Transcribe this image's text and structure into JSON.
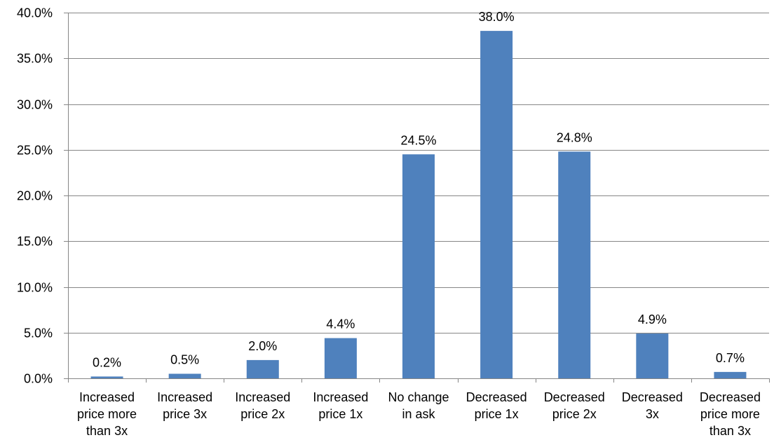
{
  "chart_data": {
    "type": "bar",
    "title": "",
    "xlabel": "",
    "ylabel": "",
    "categories": [
      [
        "Increased",
        "price more",
        "than 3x"
      ],
      [
        "Increased",
        "price 3x"
      ],
      [
        "Increased",
        "price 2x"
      ],
      [
        "Increased",
        "price 1x"
      ],
      [
        "No change",
        "in ask"
      ],
      [
        "Decreased",
        "price 1x"
      ],
      [
        "Decreased",
        "price 2x"
      ],
      [
        "Decreased",
        "3x"
      ],
      [
        "Decreased",
        "price more",
        "than 3x"
      ]
    ],
    "values": [
      0.2,
      0.5,
      2.0,
      4.4,
      24.5,
      38.0,
      24.8,
      4.9,
      0.7
    ],
    "data_labels": [
      "0.2%",
      "0.5%",
      "2.0%",
      "4.4%",
      "24.5%",
      "38.0%",
      "24.8%",
      "4.9%",
      "0.7%"
    ],
    "ylim": [
      0,
      40
    ],
    "yticks": [
      0,
      5,
      10,
      15,
      20,
      25,
      30,
      35,
      40
    ],
    "ytick_labels": [
      "0.0%",
      "5.0%",
      "10.0%",
      "15.0%",
      "20.0%",
      "25.0%",
      "30.0%",
      "35.0%",
      "40.0%"
    ],
    "grid": true,
    "legend": "none",
    "bar_color": "#4F81BD",
    "grid_color": "#868686"
  }
}
